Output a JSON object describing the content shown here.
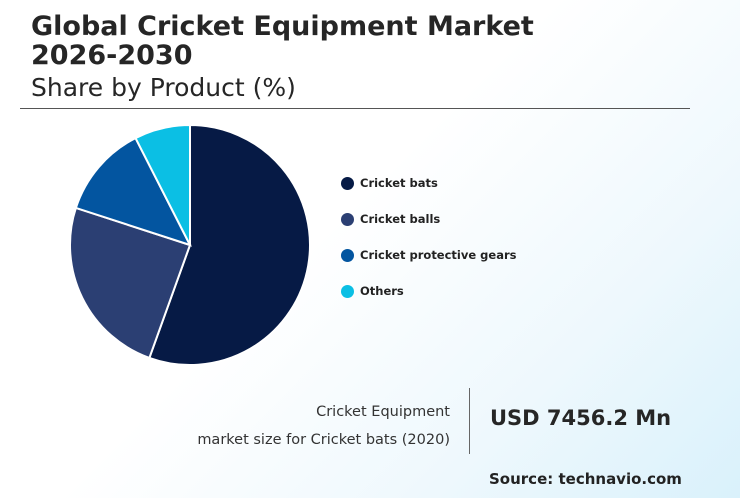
{
  "header": {
    "title": "Global Cricket Equipment Market 2026-2030",
    "subtitle": "Share by Product (%)"
  },
  "chart_data": {
    "type": "pie",
    "title": "Global Cricket Equipment Market 2026-2030",
    "subtitle": "Share by Product (%)",
    "legend_position": "right",
    "slices": [
      {
        "label": "Cricket bats",
        "value": 55.5,
        "color": "#061a45"
      },
      {
        "label": "Cricket balls",
        "value": 24.5,
        "color": "#2b3f73"
      },
      {
        "label": "Cricket protective gears",
        "value": 12.5,
        "color": "#0355a0"
      },
      {
        "label": "Others",
        "value": 7.5,
        "color": "#0bbfe4"
      }
    ]
  },
  "callout": {
    "caption_line1": "Cricket Equipment",
    "caption_line2": "market size for Cricket bats (2020)",
    "value": "USD 7456.2 Mn"
  },
  "footer": {
    "source": "Source: technavio.com"
  }
}
